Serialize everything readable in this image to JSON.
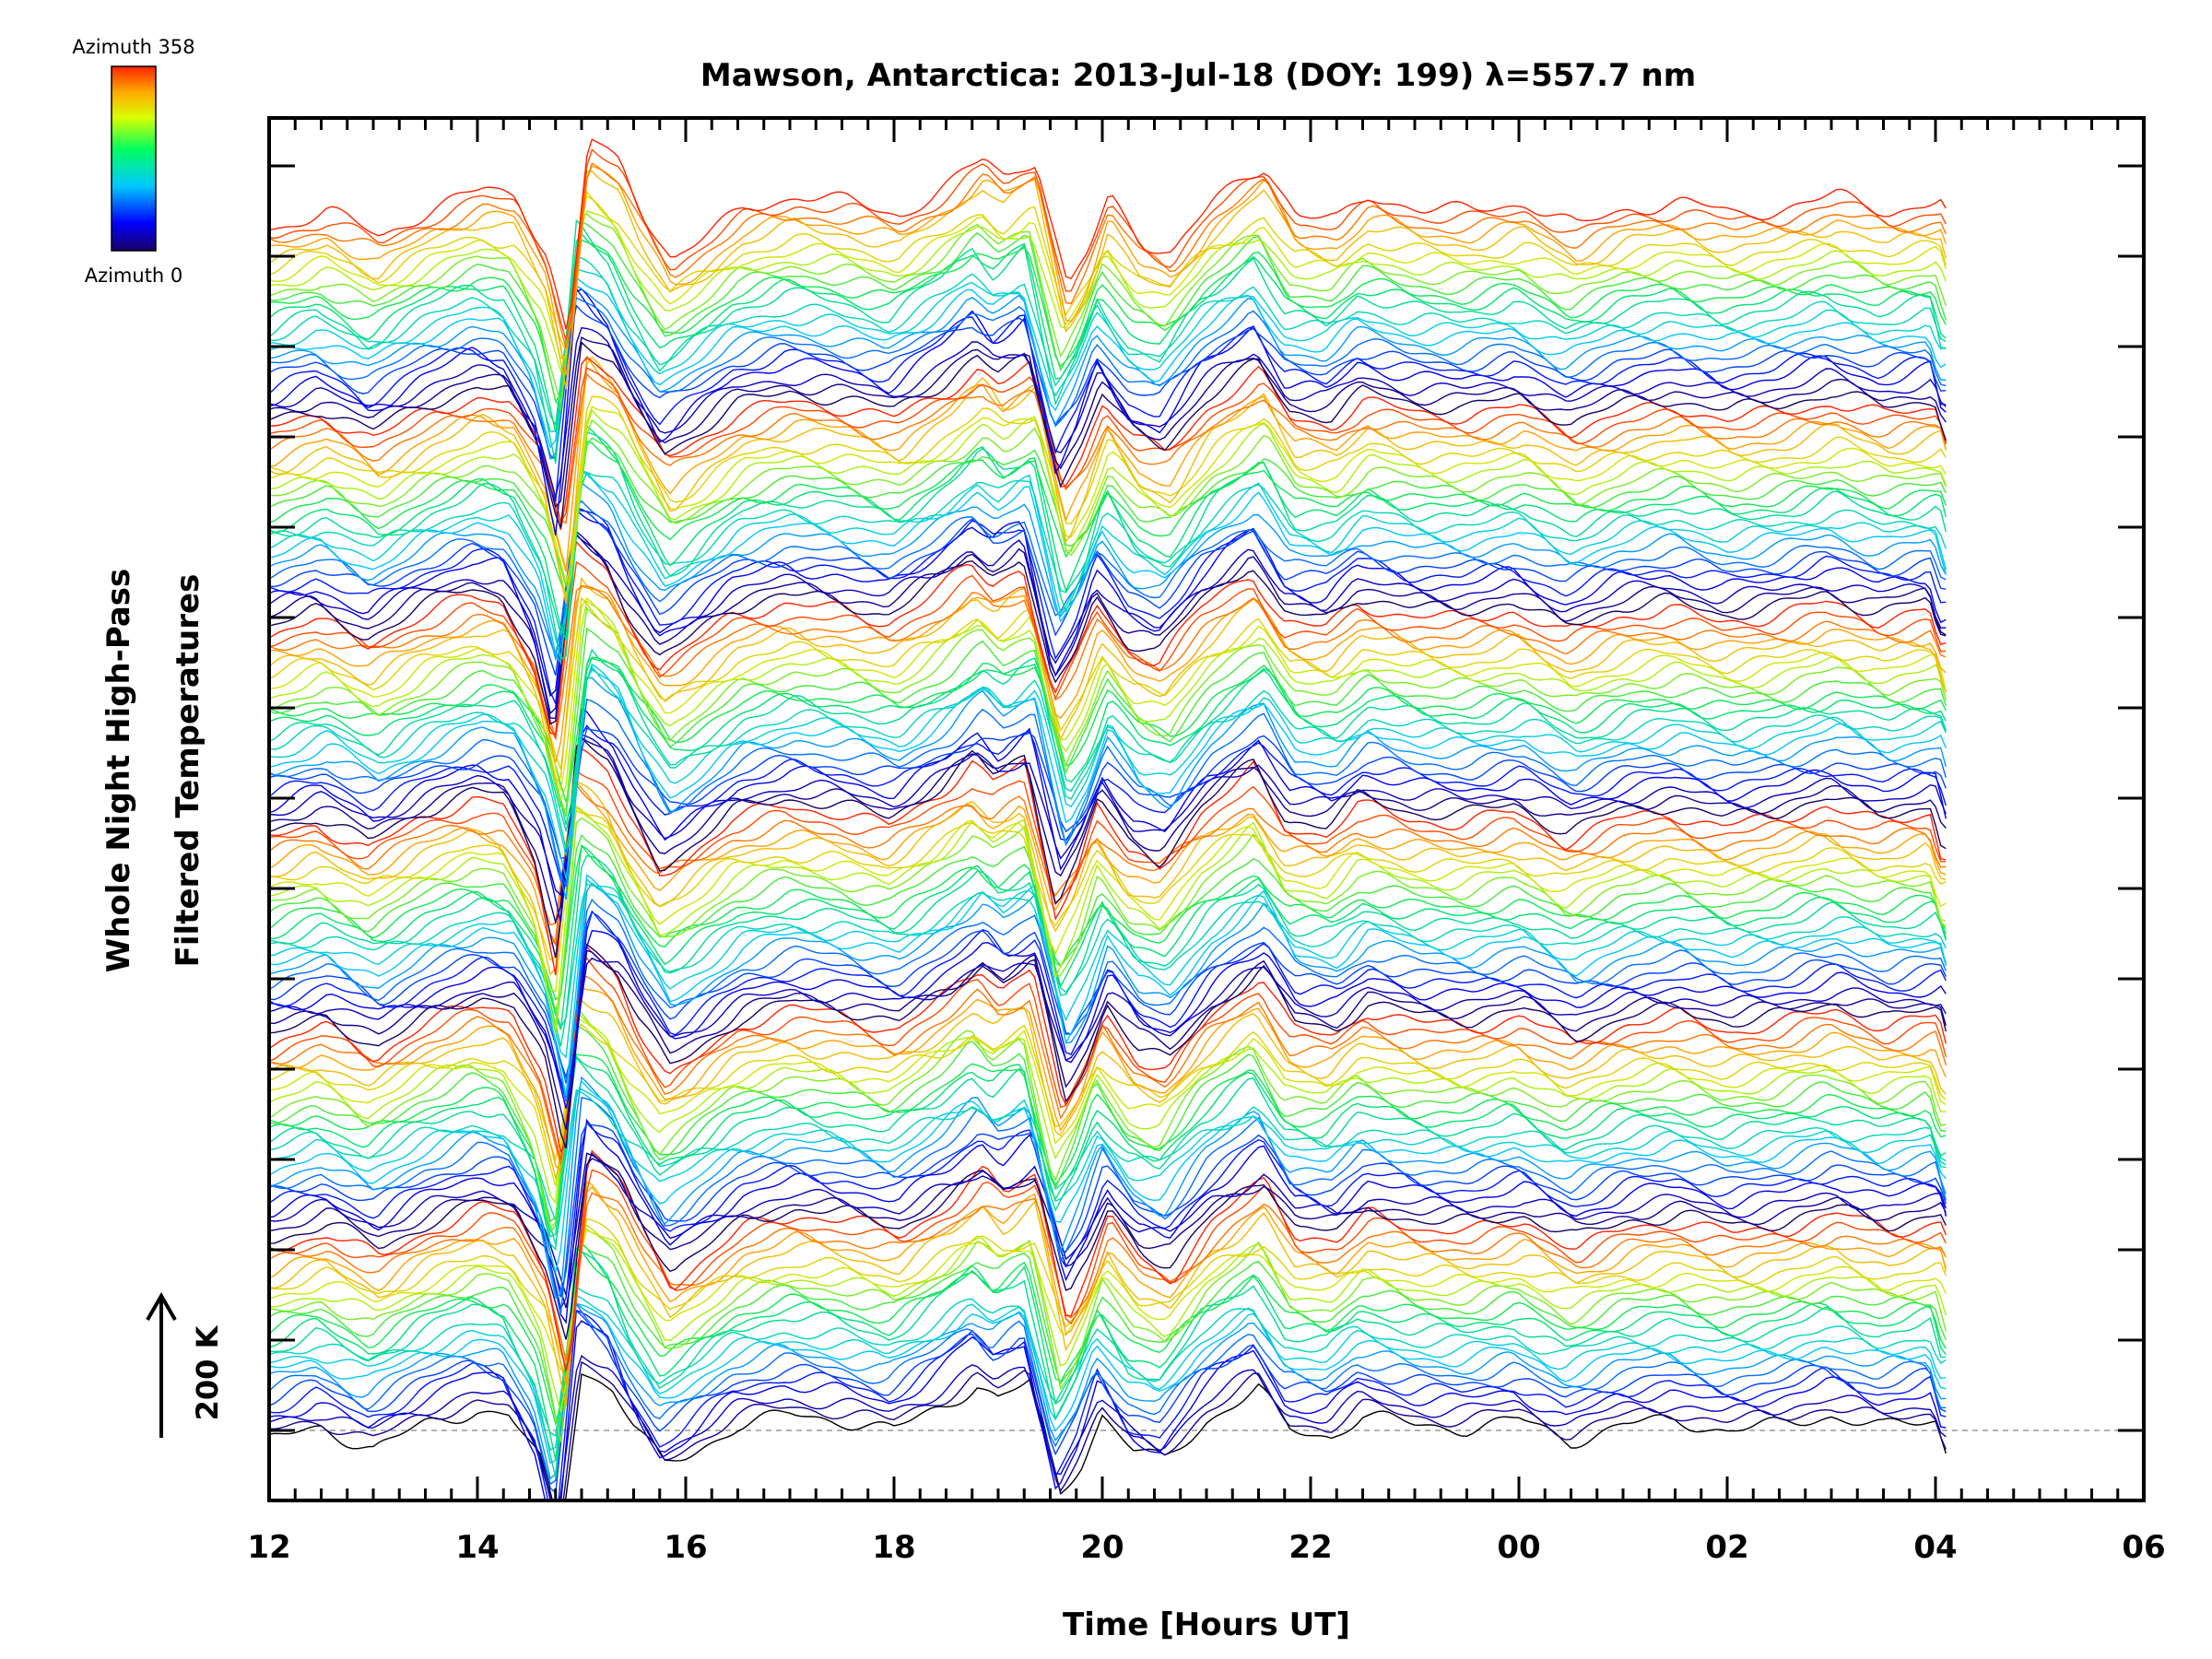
{
  "chart_data": {
    "type": "line",
    "title": "Mawson, Antarctica: 2013-Jul-18 (DOY: 199) λ=557.7 nm",
    "xlabel": "Time [Hours UT]",
    "ylabel_line1": "Whole Night High-Pass",
    "ylabel_line2": "Filtered Temperatures",
    "x_tick_labels": [
      "12",
      "14",
      "16",
      "18",
      "20",
      "22",
      "00",
      "02",
      "04",
      "06"
    ],
    "xlim_hours": [
      12,
      30
    ],
    "data_end_hour": 28.1,
    "scale_bar_label": "200 K",
    "colorbar": {
      "label_top": "Azimuth 358",
      "label_bottom": "Azimuth 0",
      "colormap": "rainbow"
    },
    "num_traces": 144,
    "trace_offset_K": 12.3,
    "baseline_dashed": true,
    "y_tick_count": 15,
    "pattern_hours": [
      12.0,
      12.5,
      13.0,
      13.5,
      14.0,
      14.3,
      14.6,
      14.8,
      15.0,
      15.3,
      15.5,
      15.8,
      16.0,
      16.5,
      17.0,
      17.5,
      18.0,
      18.5,
      18.8,
      19.0,
      19.3,
      19.6,
      19.8,
      20.0,
      20.3,
      20.6,
      21.0,
      21.5,
      21.8,
      22.2,
      22.5,
      23.0,
      23.5,
      24.0,
      24.5,
      25.0,
      25.5,
      26.0,
      26.5,
      27.0,
      27.5,
      28.0,
      28.1
    ],
    "pattern_temperature_K": [
      -20,
      5,
      -35,
      10,
      40,
      30,
      -60,
      -200,
      120,
      80,
      10,
      -70,
      -50,
      10,
      30,
      20,
      0,
      50,
      90,
      60,
      90,
      -120,
      -60,
      30,
      -40,
      -60,
      20,
      80,
      0,
      -10,
      30,
      10,
      5,
      20,
      -20,
      10,
      20,
      0,
      10,
      30,
      5,
      20,
      -40
    ],
    "amplitude_variation": [
      1.0,
      0.9,
      0.8,
      1.1,
      1.0,
      0.85,
      0.95,
      1.05
    ]
  }
}
